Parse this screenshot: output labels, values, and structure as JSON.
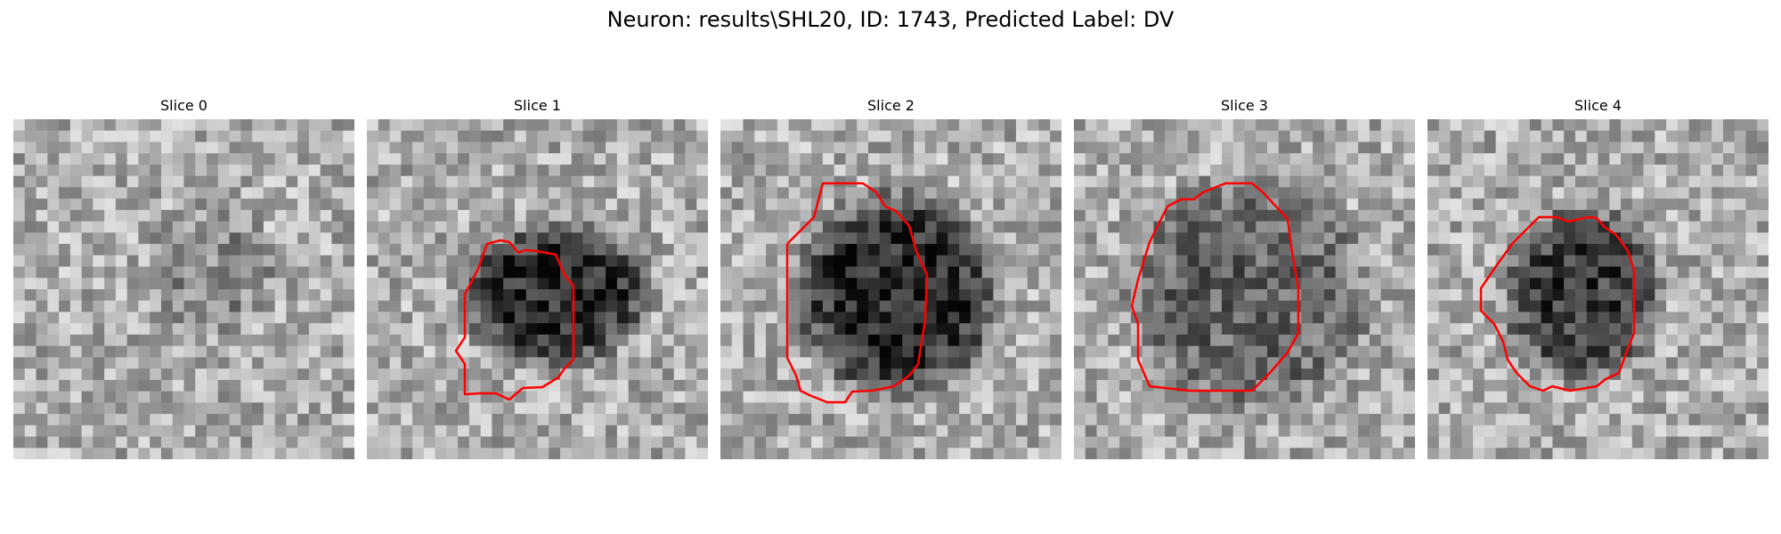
{
  "figure": {
    "title": "Neuron: results\\SHL20, ID: 1743, Predicted Label: DV"
  },
  "panels": [
    {
      "title": "Slice 0",
      "has_contour": false,
      "blob_strength": 0.25
    },
    {
      "title": "Slice 1",
      "has_contour": true,
      "blob_strength": 1.0
    },
    {
      "title": "Slice 2",
      "has_contour": true,
      "blob_strength": 1.0
    },
    {
      "title": "Slice 3",
      "has_contour": true,
      "blob_strength": 0.55
    },
    {
      "title": "Slice 4",
      "has_contour": true,
      "blob_strength": 0.85
    }
  ],
  "colors": {
    "contour": "#ff0000",
    "background": "#ffffff"
  }
}
